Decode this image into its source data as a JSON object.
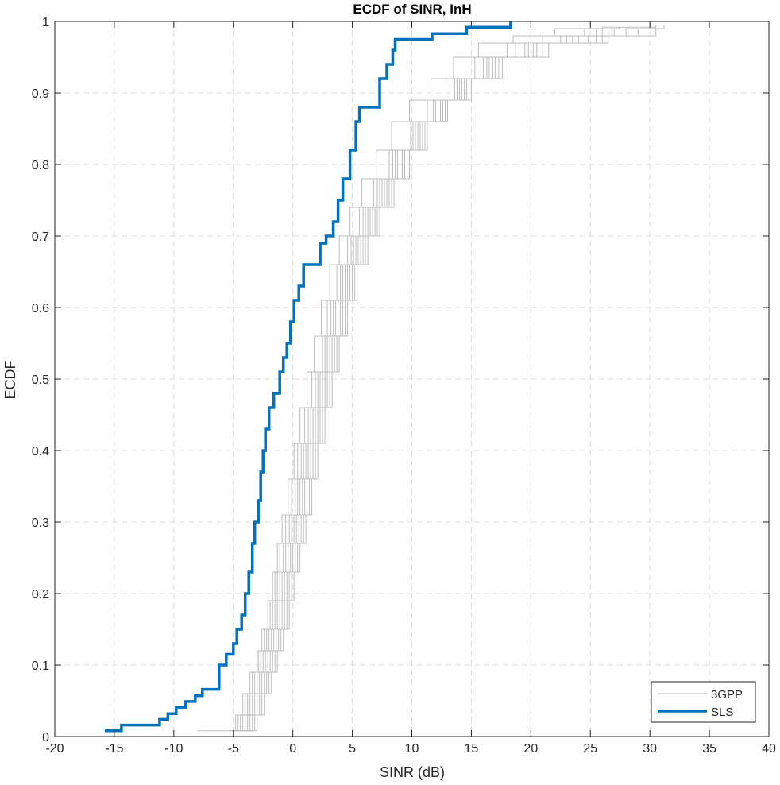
{
  "chart_data": {
    "type": "line",
    "title": "ECDF of SINR, InH",
    "xlabel": "SINR (dB)",
    "ylabel": "ECDF",
    "xlim": [
      -20,
      40
    ],
    "ylim": [
      0,
      1
    ],
    "xticks": [
      "-20",
      "-15",
      "-10",
      "-5",
      "0",
      "5",
      "10",
      "15",
      "20",
      "25",
      "30",
      "35",
      "40"
    ],
    "yticks": [
      "0",
      "0.1",
      "0.2",
      "0.3",
      "0.4",
      "0.5",
      "0.6",
      "0.7",
      "0.8",
      "0.9",
      "1"
    ],
    "grid": true,
    "legend_position": "bottom-right",
    "series": [
      {
        "name": "3GPP",
        "color": "#bdbdbd",
        "style": "thin",
        "note_curves": 10,
        "curves": [
          {
            "x": [
              -8.0,
              -5.5,
              -4.8,
              -4.2,
              -3.6,
              -3.0,
              -2.6,
              -2.1,
              -1.7,
              -1.3,
              -0.9,
              -0.4,
              0.1,
              0.6,
              1.2,
              1.8,
              2.4,
              3.1,
              3.9,
              4.8,
              5.8,
              7.0,
              8.3,
              9.8,
              11.6,
              13.5,
              15.6,
              18.5,
              22.0,
              26.0,
              30.5
            ],
            "y": [
              0.008,
              0.008,
              0.03,
              0.06,
              0.09,
              0.12,
              0.15,
              0.19,
              0.23,
              0.27,
              0.31,
              0.36,
              0.41,
              0.46,
              0.51,
              0.56,
              0.61,
              0.66,
              0.7,
              0.74,
              0.78,
              0.82,
              0.86,
              0.89,
              0.92,
              0.95,
              0.97,
              0.98,
              0.99,
              0.992,
              0.992
            ]
          },
          {
            "x": [
              -5.2,
              -4.6,
              -4.0,
              -3.4,
              -2.9,
              -2.4,
              -1.9,
              -1.5,
              -1.1,
              -0.6,
              -0.1,
              0.4,
              1.0,
              1.6,
              2.2,
              2.9,
              3.7,
              4.6,
              5.6,
              6.8,
              8.1,
              9.6,
              11.3,
              13.2,
              15.3,
              18.0,
              21.0,
              24.5,
              27.5
            ],
            "y": [
              0.008,
              0.03,
              0.06,
              0.09,
              0.12,
              0.15,
              0.19,
              0.23,
              0.27,
              0.31,
              0.36,
              0.41,
              0.46,
              0.51,
              0.56,
              0.61,
              0.66,
              0.7,
              0.74,
              0.78,
              0.82,
              0.86,
              0.89,
              0.92,
              0.95,
              0.97,
              0.98,
              0.99,
              0.992
            ]
          },
          {
            "x": [
              -5.0,
              -4.4,
              -3.8,
              -3.2,
              -2.7,
              -2.2,
              -1.7,
              -1.3,
              -0.8,
              -0.3,
              0.2,
              0.7,
              1.3,
              1.9,
              2.5,
              3.2,
              4.0,
              4.9,
              5.9,
              7.1,
              8.4,
              9.9,
              11.6,
              13.6,
              15.8,
              18.7,
              22.5,
              26.8
            ],
            "y": [
              0.008,
              0.03,
              0.06,
              0.09,
              0.12,
              0.15,
              0.19,
              0.23,
              0.27,
              0.31,
              0.36,
              0.41,
              0.46,
              0.51,
              0.56,
              0.61,
              0.66,
              0.7,
              0.74,
              0.78,
              0.82,
              0.86,
              0.89,
              0.92,
              0.95,
              0.97,
              0.98,
              0.99
            ]
          },
          {
            "x": [
              -4.8,
              -4.2,
              -3.6,
              -3.0,
              -2.5,
              -2.0,
              -1.5,
              -1.1,
              -0.6,
              -0.1,
              0.4,
              0.9,
              1.5,
              2.1,
              2.7,
              3.4,
              4.2,
              5.1,
              6.1,
              7.3,
              8.6,
              10.1,
              11.8,
              13.8,
              16.0,
              19.0,
              23.0,
              27.0
            ],
            "y": [
              0.008,
              0.03,
              0.06,
              0.09,
              0.12,
              0.15,
              0.19,
              0.23,
              0.27,
              0.31,
              0.36,
              0.41,
              0.46,
              0.51,
              0.56,
              0.61,
              0.66,
              0.7,
              0.74,
              0.78,
              0.82,
              0.86,
              0.89,
              0.92,
              0.95,
              0.97,
              0.98,
              0.99
            ]
          },
          {
            "x": [
              -4.6,
              -4.0,
              -3.4,
              -2.8,
              -2.3,
              -1.8,
              -1.3,
              -0.9,
              -0.4,
              0.1,
              0.6,
              1.1,
              1.7,
              2.3,
              2.9,
              3.6,
              4.4,
              5.3,
              6.3,
              7.5,
              8.8,
              10.3,
              12.0,
              14.0,
              16.3,
              19.5,
              23.5,
              28.0,
              31.2
            ],
            "y": [
              0.008,
              0.03,
              0.06,
              0.09,
              0.12,
              0.15,
              0.19,
              0.23,
              0.27,
              0.31,
              0.36,
              0.41,
              0.46,
              0.51,
              0.56,
              0.61,
              0.66,
              0.7,
              0.74,
              0.78,
              0.82,
              0.86,
              0.89,
              0.92,
              0.95,
              0.97,
              0.98,
              0.99,
              0.995
            ]
          },
          {
            "x": [
              -4.4,
              -3.8,
              -3.2,
              -2.6,
              -2.1,
              -1.6,
              -1.1,
              -0.7,
              -0.2,
              0.3,
              0.8,
              1.3,
              1.9,
              2.5,
              3.1,
              3.8,
              4.6,
              5.5,
              6.5,
              7.7,
              9.0,
              10.5,
              12.2,
              14.2,
              16.5,
              19.8,
              24.0,
              29.0
            ],
            "y": [
              0.008,
              0.03,
              0.06,
              0.09,
              0.12,
              0.15,
              0.19,
              0.23,
              0.27,
              0.31,
              0.36,
              0.41,
              0.46,
              0.51,
              0.56,
              0.61,
              0.66,
              0.7,
              0.74,
              0.78,
              0.82,
              0.86,
              0.89,
              0.92,
              0.95,
              0.97,
              0.98,
              0.99
            ]
          },
          {
            "x": [
              -4.2,
              -3.6,
              -3.0,
              -2.4,
              -1.9,
              -1.4,
              -0.9,
              -0.5,
              0.0,
              0.5,
              1.0,
              1.5,
              2.1,
              2.7,
              3.3,
              4.0,
              4.8,
              5.7,
              6.7,
              7.9,
              9.2,
              10.7,
              12.4,
              14.4,
              16.8,
              20.2,
              24.8,
              30.5
            ],
            "y": [
              0.008,
              0.03,
              0.06,
              0.09,
              0.12,
              0.15,
              0.19,
              0.23,
              0.27,
              0.31,
              0.36,
              0.41,
              0.46,
              0.51,
              0.56,
              0.61,
              0.66,
              0.7,
              0.74,
              0.78,
              0.82,
              0.86,
              0.89,
              0.92,
              0.95,
              0.97,
              0.98,
              0.995
            ]
          },
          {
            "x": [
              -4.0,
              -3.4,
              -2.8,
              -2.2,
              -1.7,
              -1.2,
              -0.7,
              -0.3,
              0.2,
              0.7,
              1.2,
              1.7,
              2.3,
              2.9,
              3.5,
              4.2,
              5.0,
              5.9,
              6.9,
              8.1,
              9.4,
              10.9,
              12.6,
              14.6,
              17.0,
              20.5,
              25.5
            ],
            "y": [
              0.008,
              0.03,
              0.06,
              0.09,
              0.12,
              0.15,
              0.19,
              0.23,
              0.27,
              0.31,
              0.36,
              0.41,
              0.46,
              0.51,
              0.56,
              0.61,
              0.66,
              0.7,
              0.74,
              0.78,
              0.82,
              0.86,
              0.89,
              0.92,
              0.95,
              0.97,
              0.99
            ]
          },
          {
            "x": [
              -3.8,
              -3.2,
              -2.6,
              -2.0,
              -1.5,
              -1.0,
              -0.5,
              -0.1,
              0.4,
              0.9,
              1.4,
              1.9,
              2.5,
              3.1,
              3.7,
              4.4,
              5.2,
              6.1,
              7.1,
              8.3,
              9.6,
              11.1,
              12.8,
              14.8,
              17.3,
              21.0,
              26.0
            ],
            "y": [
              0.008,
              0.03,
              0.06,
              0.09,
              0.12,
              0.15,
              0.19,
              0.23,
              0.27,
              0.31,
              0.36,
              0.41,
              0.46,
              0.51,
              0.56,
              0.61,
              0.66,
              0.7,
              0.74,
              0.78,
              0.82,
              0.86,
              0.89,
              0.92,
              0.95,
              0.97,
              0.99
            ]
          },
          {
            "x": [
              -3.6,
              -3.0,
              -2.4,
              -1.8,
              -1.3,
              -0.8,
              -0.3,
              0.1,
              0.6,
              1.1,
              1.6,
              2.1,
              2.7,
              3.3,
              3.9,
              4.6,
              5.4,
              6.3,
              7.3,
              8.5,
              9.8,
              11.3,
              13.0,
              15.0,
              17.6,
              21.5,
              26.5
            ],
            "y": [
              0.008,
              0.03,
              0.06,
              0.09,
              0.12,
              0.15,
              0.19,
              0.23,
              0.27,
              0.31,
              0.36,
              0.41,
              0.46,
              0.51,
              0.56,
              0.61,
              0.66,
              0.7,
              0.74,
              0.78,
              0.82,
              0.86,
              0.89,
              0.92,
              0.95,
              0.97,
              0.99
            ]
          }
        ]
      },
      {
        "name": "SLS",
        "color": "#0072bd",
        "style": "thick",
        "x": [
          -15.8,
          -14.4,
          -11.2,
          -10.5,
          -9.8,
          -9.0,
          -8.2,
          -7.6,
          -6.2,
          -5.6,
          -5.0,
          -4.7,
          -4.3,
          -4.0,
          -3.7,
          -3.4,
          -3.2,
          -2.9,
          -2.7,
          -2.5,
          -2.3,
          -2.0,
          -1.6,
          -1.1,
          -0.8,
          -0.5,
          -0.2,
          0.1,
          0.5,
          0.9,
          1.4,
          2.3,
          2.8,
          3.4,
          3.8,
          4.2,
          4.8,
          5.3,
          5.6,
          6.8,
          7.3,
          7.9,
          8.4,
          8.6,
          11.7,
          14.6,
          18.3
        ],
        "y": [
          0.008,
          0.016,
          0.024,
          0.032,
          0.041,
          0.049,
          0.057,
          0.066,
          0.1,
          0.115,
          0.13,
          0.15,
          0.17,
          0.2,
          0.23,
          0.27,
          0.3,
          0.33,
          0.37,
          0.4,
          0.43,
          0.46,
          0.48,
          0.51,
          0.53,
          0.55,
          0.58,
          0.61,
          0.63,
          0.66,
          0.66,
          0.69,
          0.7,
          0.72,
          0.75,
          0.78,
          0.82,
          0.86,
          0.88,
          0.88,
          0.92,
          0.94,
          0.96,
          0.975,
          0.983,
          0.992,
          1.0
        ]
      }
    ]
  }
}
